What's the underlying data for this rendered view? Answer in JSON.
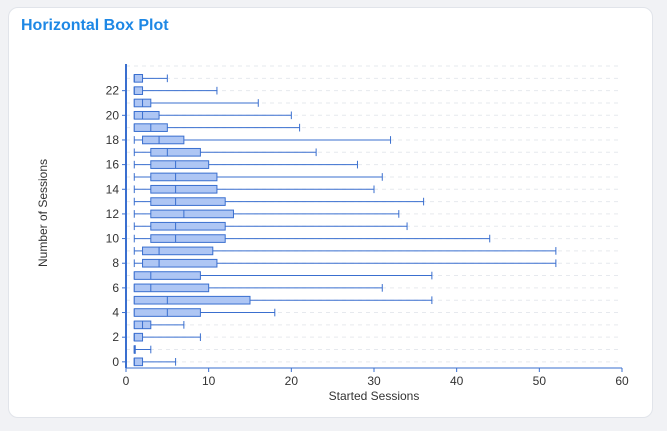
{
  "card": {
    "title": "Horizontal Box Plot"
  },
  "colors": {
    "title": "#1e88e5",
    "box_fill": "#aec6f4",
    "box_stroke": "#3a6fcf",
    "axis": "#3a6fcf",
    "grid": "#e6e9ee"
  },
  "chart_data": {
    "type": "boxplot",
    "orientation": "horizontal",
    "xlabel": "Started Sessions",
    "ylabel": "Number of Sessions",
    "xlim": [
      0,
      60
    ],
    "xticks": [
      0,
      10,
      20,
      30,
      40,
      50,
      60
    ],
    "ylim": [
      -0.5,
      24
    ],
    "yticks": [
      0,
      2,
      4,
      6,
      8,
      10,
      12,
      14,
      16,
      18,
      20,
      22
    ],
    "grid": true,
    "boxes": [
      {
        "y": 0,
        "min": 1,
        "q1": 1,
        "median": 1,
        "q3": 2,
        "max": 6
      },
      {
        "y": 1,
        "min": 1,
        "q1": 1,
        "median": 1,
        "q3": 1,
        "max": 3
      },
      {
        "y": 2,
        "min": 1,
        "q1": 1,
        "median": 1,
        "q3": 2,
        "max": 9
      },
      {
        "y": 3,
        "min": 1,
        "q1": 1,
        "median": 2,
        "q3": 3,
        "max": 7
      },
      {
        "y": 4,
        "min": 1,
        "q1": 1,
        "median": 5,
        "q3": 9,
        "max": 18
      },
      {
        "y": 5,
        "min": 1,
        "q1": 1,
        "median": 5,
        "q3": 15,
        "max": 37
      },
      {
        "y": 6,
        "min": 1,
        "q1": 1,
        "median": 3,
        "q3": 10,
        "max": 31
      },
      {
        "y": 7,
        "min": 1,
        "q1": 1,
        "median": 3,
        "q3": 9,
        "max": 37
      },
      {
        "y": 8,
        "min": 1,
        "q1": 2,
        "median": 4,
        "q3": 11,
        "max": 52
      },
      {
        "y": 9,
        "min": 1,
        "q1": 2,
        "median": 4,
        "q3": 10.5,
        "max": 52
      },
      {
        "y": 10,
        "min": 1,
        "q1": 3,
        "median": 6,
        "q3": 12,
        "max": 44
      },
      {
        "y": 11,
        "min": 1,
        "q1": 3,
        "median": 6,
        "q3": 12,
        "max": 34
      },
      {
        "y": 12,
        "min": 1,
        "q1": 3,
        "median": 7,
        "q3": 13,
        "max": 33
      },
      {
        "y": 13,
        "min": 1,
        "q1": 3,
        "median": 6,
        "q3": 12,
        "max": 36
      },
      {
        "y": 14,
        "min": 1,
        "q1": 3,
        "median": 6,
        "q3": 11,
        "max": 30
      },
      {
        "y": 15,
        "min": 1,
        "q1": 3,
        "median": 6,
        "q3": 11,
        "max": 31
      },
      {
        "y": 16,
        "min": 1,
        "q1": 3,
        "median": 6,
        "q3": 10,
        "max": 28
      },
      {
        "y": 17,
        "min": 1,
        "q1": 3,
        "median": 5,
        "q3": 9,
        "max": 23
      },
      {
        "y": 18,
        "min": 1,
        "q1": 2,
        "median": 4,
        "q3": 7,
        "max": 32
      },
      {
        "y": 19,
        "min": 1,
        "q1": 1,
        "median": 3,
        "q3": 5,
        "max": 21
      },
      {
        "y": 20,
        "min": 1,
        "q1": 1,
        "median": 2,
        "q3": 4,
        "max": 20
      },
      {
        "y": 21,
        "min": 1,
        "q1": 1,
        "median": 2,
        "q3": 3,
        "max": 16
      },
      {
        "y": 22,
        "min": 1,
        "q1": 1,
        "median": 1,
        "q3": 2,
        "max": 11
      },
      {
        "y": 23,
        "min": 1,
        "q1": 1,
        "median": 1,
        "q3": 2,
        "max": 5
      }
    ]
  }
}
